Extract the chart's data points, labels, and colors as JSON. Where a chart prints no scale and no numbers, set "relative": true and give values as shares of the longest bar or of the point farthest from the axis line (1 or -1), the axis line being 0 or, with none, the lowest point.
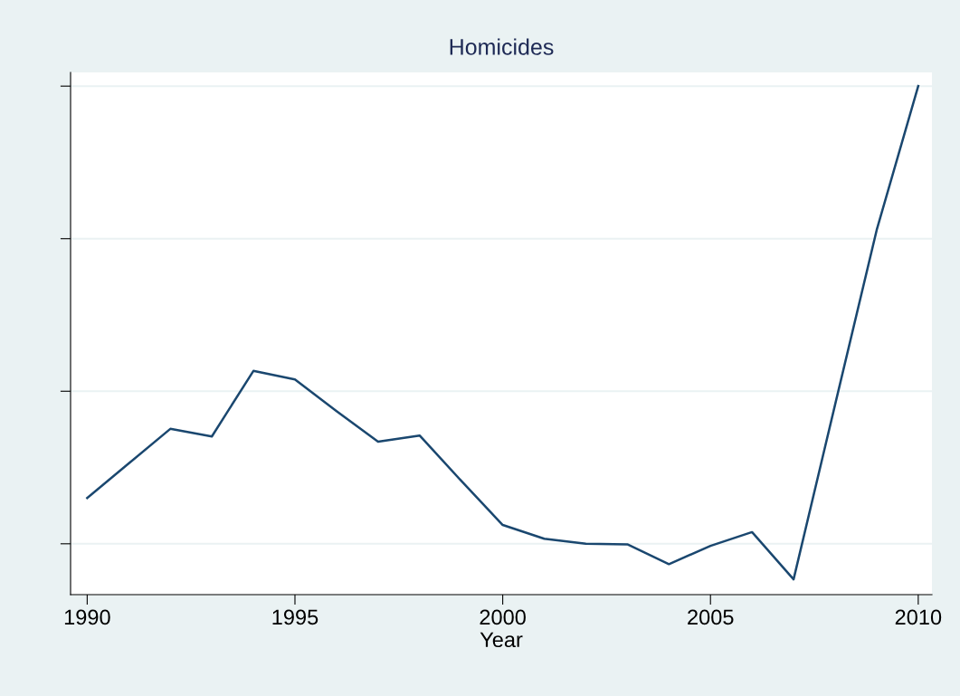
{
  "chart_data": {
    "type": "line",
    "title": "Homicides",
    "xlabel": "Year",
    "relative": true,
    "x": [
      1990,
      1991,
      1992,
      1993,
      1994,
      1995,
      1996,
      1997,
      1998,
      1999,
      2000,
      2001,
      2002,
      2003,
      2004,
      2005,
      2006,
      2007,
      2008,
      2009,
      2010
    ],
    "series": [
      {
        "color": "#1a476f",
        "values": [
          0.19,
          0.258,
          0.326,
          0.311,
          0.44,
          0.423,
          0.361,
          0.301,
          0.313,
          0.224,
          0.137,
          0.11,
          0.1,
          0.099,
          0.06,
          0.096,
          0.123,
          0.03,
          0.374,
          0.717,
          1.0
        ]
      }
    ],
    "xlim": [
      1989.6,
      2010.33
    ],
    "xticks": [
      1990,
      1995,
      2000,
      2005,
      2010
    ],
    "grid": "y",
    "marker": "none",
    "line_style": "solid"
  }
}
